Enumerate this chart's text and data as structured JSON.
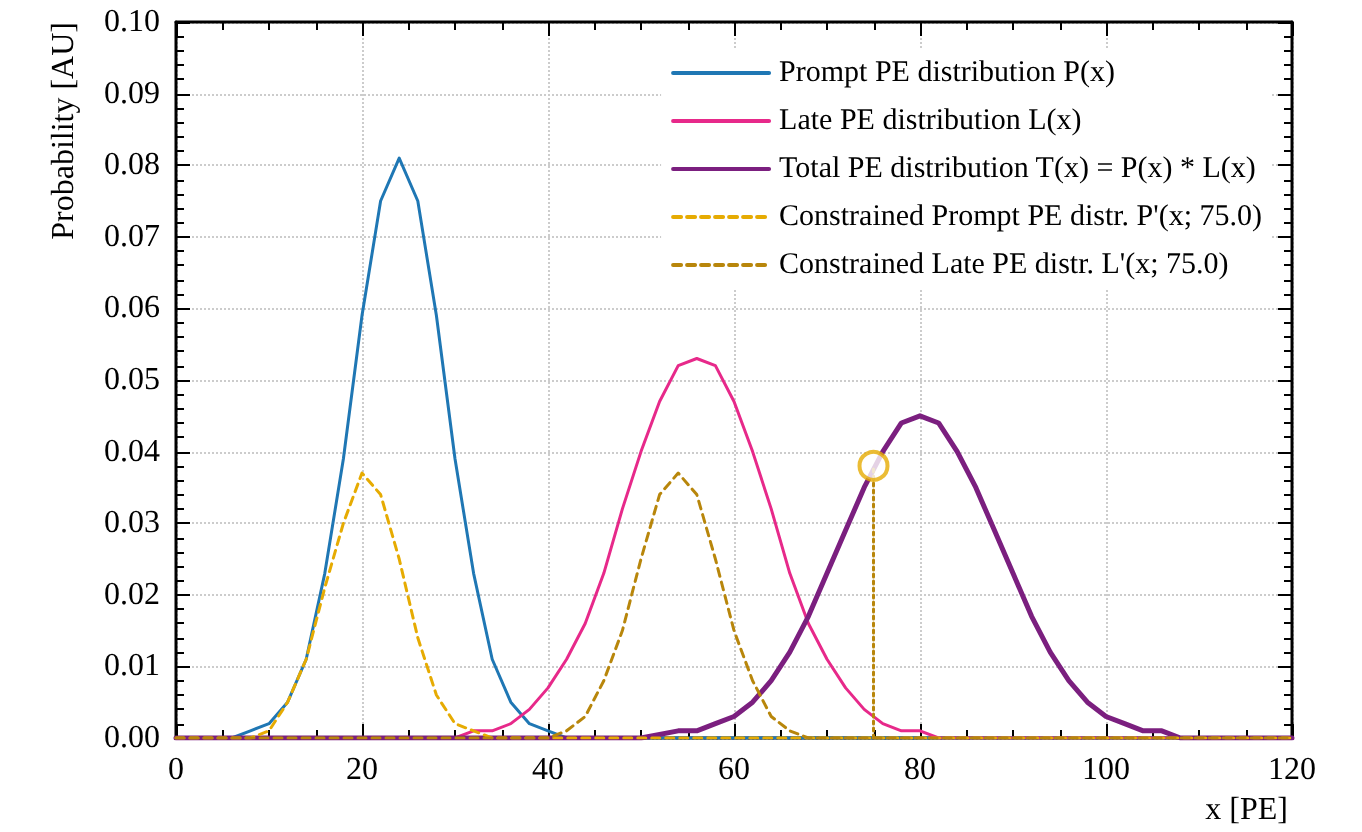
{
  "chart_data": {
    "type": "line",
    "xlabel": "x [PE]",
    "ylabel": "Probability [AU]",
    "xlim": [
      0,
      120
    ],
    "xticks": [
      0,
      20,
      40,
      60,
      80,
      100,
      120
    ],
    "ylim": [
      0,
      0.1
    ],
    "yticks": [
      {
        "value": 0,
        "label": "0.00"
      },
      {
        "value": 0.01,
        "label": "0.01"
      },
      {
        "value": 0.02,
        "label": "0.02"
      },
      {
        "value": 0.03,
        "label": "0.03"
      },
      {
        "value": 0.04,
        "label": "0.04"
      },
      {
        "value": 0.05,
        "label": "0.05"
      },
      {
        "value": 0.06,
        "label": "0.06"
      },
      {
        "value": 0.07,
        "label": "0.07"
      },
      {
        "value": 0.08,
        "label": "0.08"
      },
      {
        "value": 0.09,
        "label": "0.09"
      },
      {
        "value": 0.1,
        "label": "0.10"
      }
    ],
    "grid": true,
    "legend": "top right",
    "series": [
      {
        "name": "Prompt PE distribution P(x)",
        "color": "#1f77b4",
        "line_style": "solid",
        "x": [
          0,
          6,
          8,
          10,
          12,
          14,
          16,
          18,
          20,
          22,
          24,
          26,
          28,
          30,
          32,
          34,
          36,
          38,
          40,
          42,
          120
        ],
        "values": [
          0,
          0,
          0.001,
          0.002,
          0.005,
          0.011,
          0.023,
          0.039,
          0.059,
          0.075,
          0.081,
          0.075,
          0.059,
          0.039,
          0.023,
          0.011,
          0.005,
          0.002,
          0.001,
          0,
          0
        ]
      },
      {
        "name": "Late PE distribution L(x)",
        "color": "#e7298a",
        "line_style": "solid",
        "x": [
          0,
          30,
          32,
          34,
          36,
          38,
          40,
          42,
          44,
          46,
          48,
          50,
          52,
          54,
          56,
          58,
          60,
          62,
          64,
          66,
          68,
          70,
          72,
          74,
          76,
          78,
          80,
          82,
          120
        ],
        "values": [
          0,
          0,
          0.001,
          0.001,
          0.002,
          0.004,
          0.007,
          0.011,
          0.016,
          0.023,
          0.032,
          0.04,
          0.047,
          0.052,
          0.053,
          0.052,
          0.047,
          0.04,
          0.032,
          0.023,
          0.016,
          0.011,
          0.007,
          0.004,
          0.002,
          0.001,
          0.001,
          0,
          0
        ]
      },
      {
        "name": "Total PE distribution T(x) = P(x) * L(x)",
        "color": "#7b1f7f",
        "line_style": "solid",
        "x": [
          0,
          50,
          54,
          56,
          58,
          60,
          62,
          64,
          66,
          68,
          70,
          72,
          74,
          76,
          78,
          80,
          82,
          84,
          86,
          88,
          90,
          92,
          94,
          96,
          98,
          100,
          102,
          104,
          106,
          108,
          120
        ],
        "values": [
          0,
          0,
          0.001,
          0.001,
          0.002,
          0.003,
          0.005,
          0.008,
          0.012,
          0.017,
          0.023,
          0.029,
          0.035,
          0.04,
          0.044,
          0.045,
          0.044,
          0.04,
          0.035,
          0.029,
          0.023,
          0.017,
          0.012,
          0.008,
          0.005,
          0.003,
          0.002,
          0.001,
          0.001,
          0,
          0
        ]
      },
      {
        "name": "Constrained Prompt PE distr. P'(x; 75.0)",
        "color": "#e6ab02",
        "line_style": "dashed",
        "x": [
          0,
          8,
          10,
          12,
          14,
          16,
          18,
          20,
          22,
          24,
          26,
          28,
          30,
          32,
          34,
          120
        ],
        "values": [
          0,
          0,
          0.001,
          0.005,
          0.011,
          0.021,
          0.03,
          0.037,
          0.034,
          0.025,
          0.014,
          0.006,
          0.002,
          0.001,
          0,
          0
        ]
      },
      {
        "name": "Constrained Late PE distr. L'(x; 75.0)",
        "color": "#b8860b",
        "line_style": "dashed",
        "x": [
          0,
          40,
          42,
          44,
          46,
          48,
          50,
          52,
          54,
          56,
          58,
          60,
          62,
          64,
          66,
          68,
          120
        ],
        "values": [
          0,
          0,
          0.001,
          0.003,
          0.008,
          0.015,
          0.025,
          0.034,
          0.037,
          0.034,
          0.025,
          0.015,
          0.008,
          0.003,
          0.001,
          0,
          0
        ]
      },
      {
        "color": "#b8860b",
        "line_style": "dotted",
        "x": [
          75,
          75
        ],
        "values": [
          0,
          0.038
        ]
      },
      {
        "type": "scatter",
        "color": "#e6ab02",
        "marker": "circle",
        "x": [
          75
        ],
        "values": [
          0.038
        ]
      }
    ]
  }
}
